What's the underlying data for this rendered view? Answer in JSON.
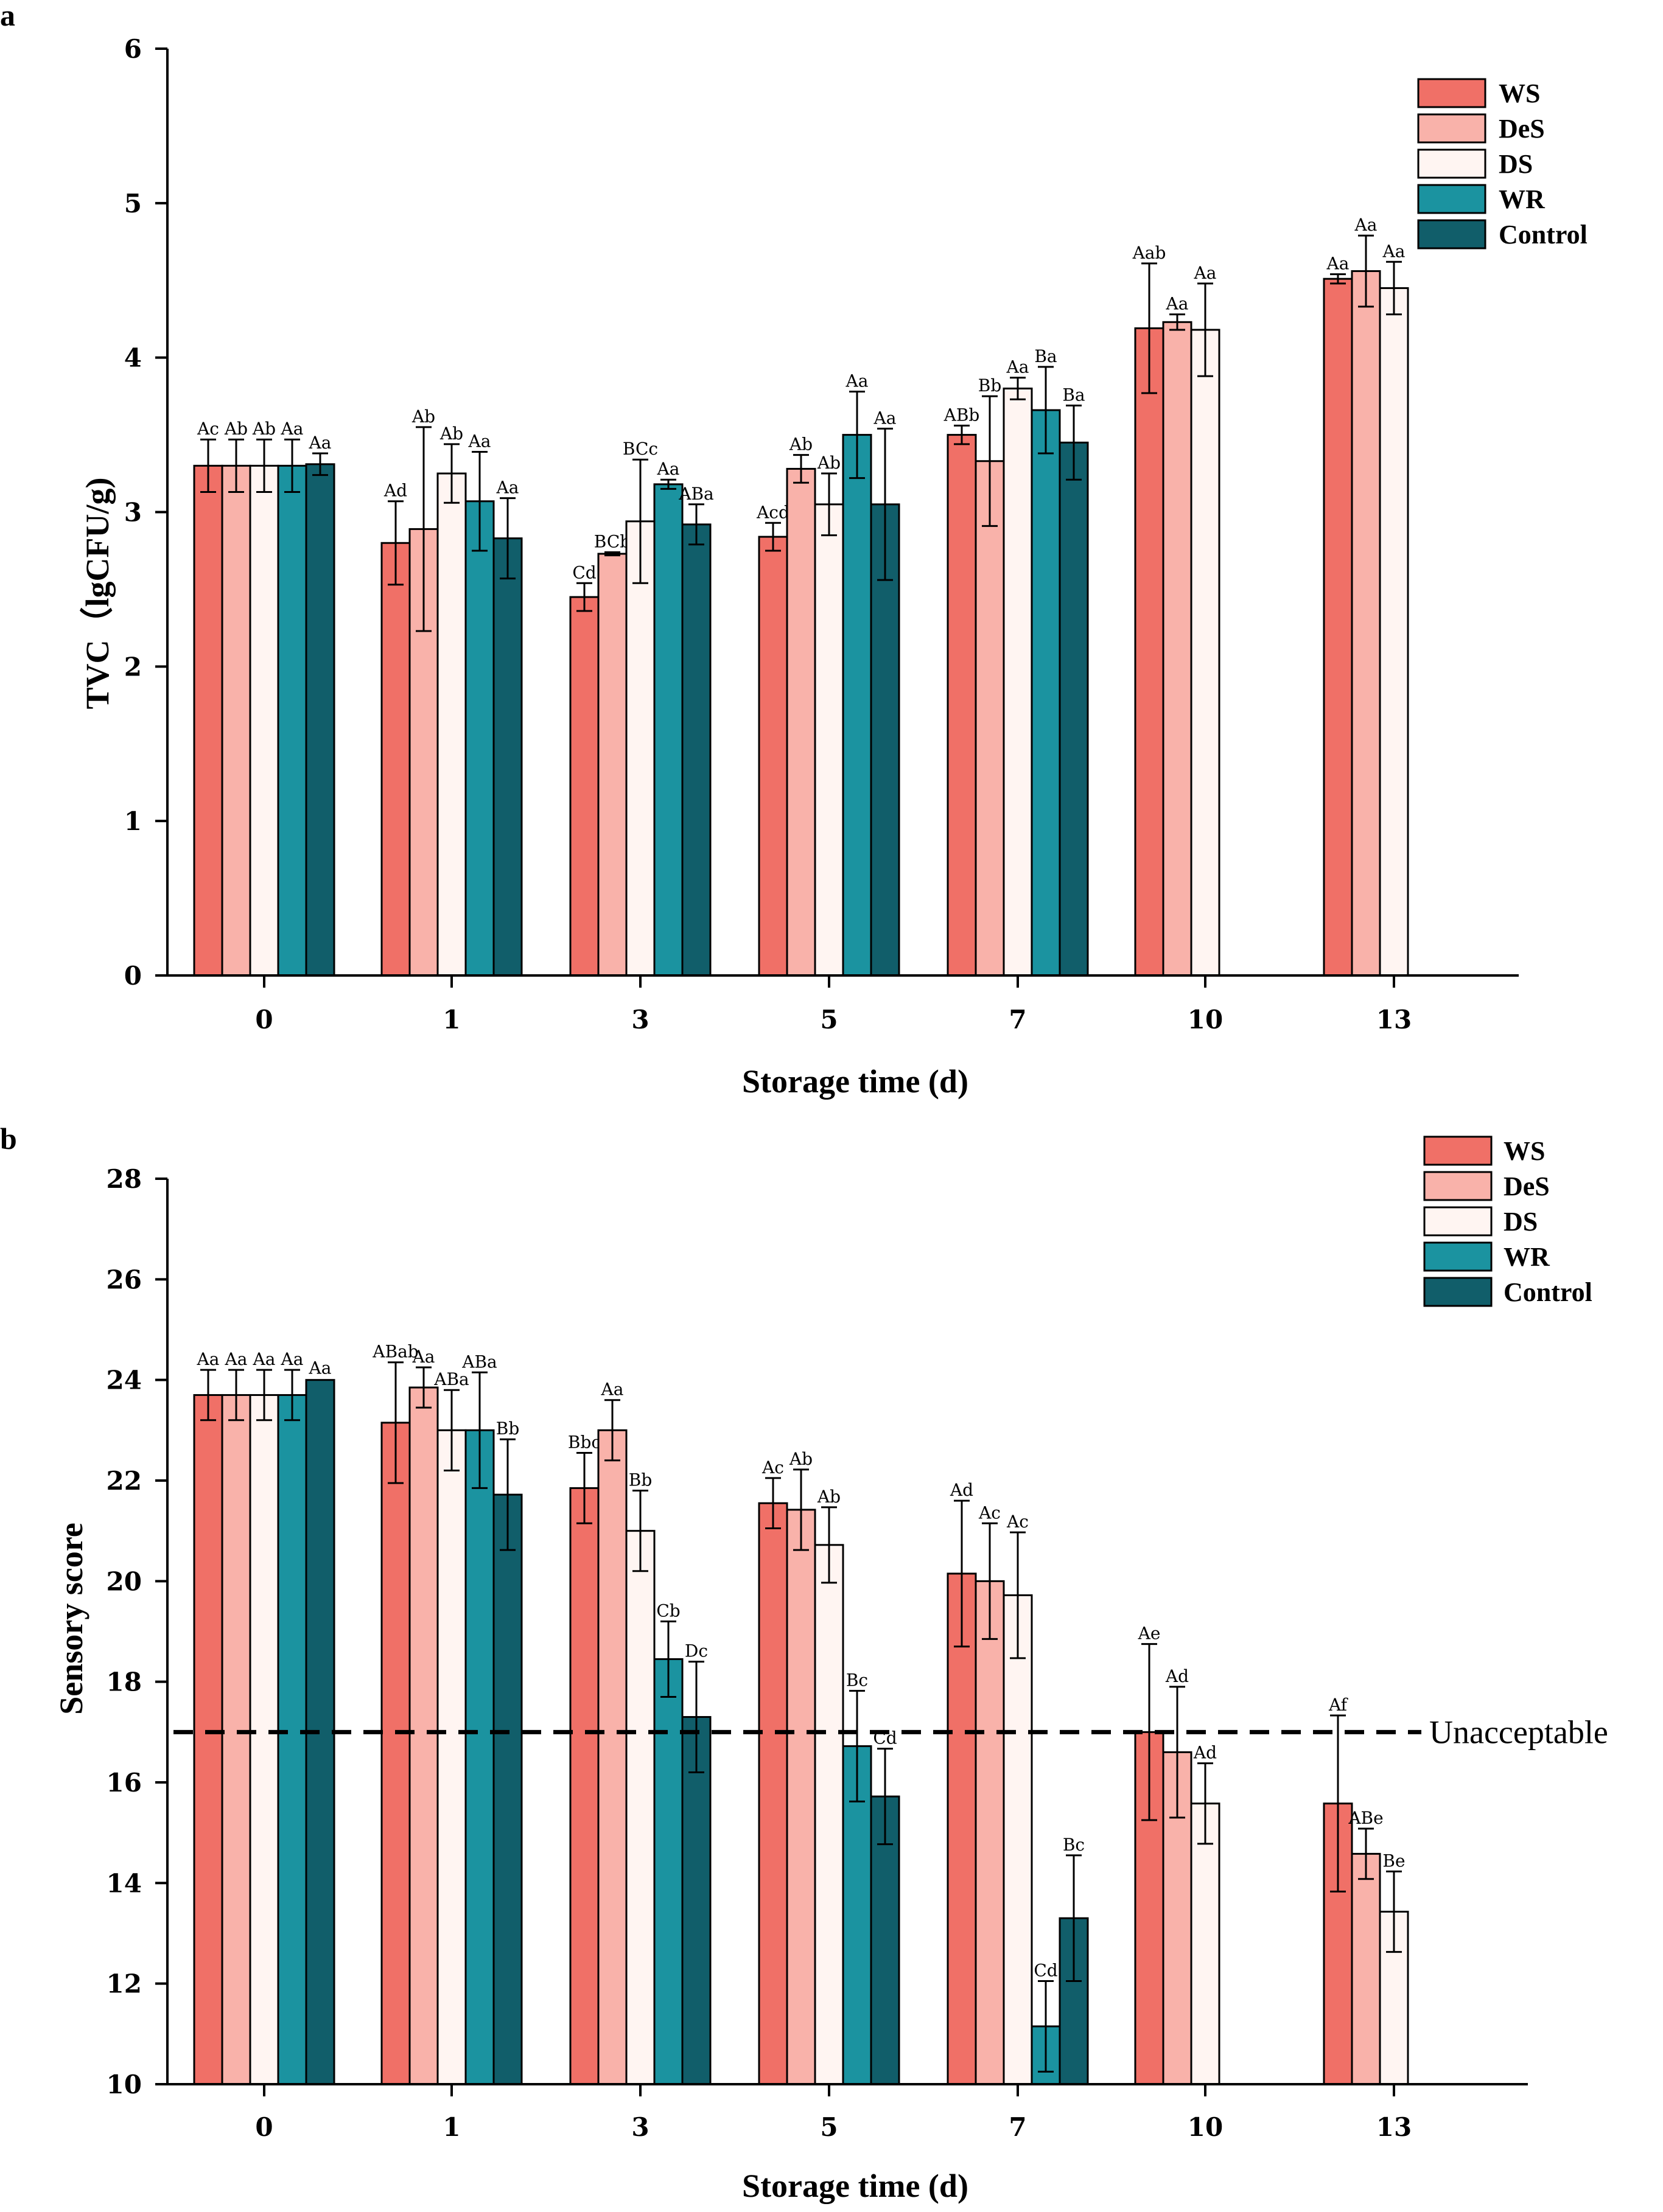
{
  "chart_data": [
    {
      "panel": "a",
      "type": "bar",
      "xlabel": "Storage time (d)",
      "ylabel": "TVC（lgCFU/g)",
      "ylim": [
        0,
        6
      ],
      "yticks": [
        "0",
        "1",
        "2",
        "3",
        "4",
        "5",
        "6"
      ],
      "categories": [
        "0",
        "1",
        "3",
        "5",
        "7",
        "10",
        "13"
      ],
      "legend": {
        "placement": "top-right"
      },
      "series": [
        {
          "name": "WS",
          "color": "#F07067",
          "values": [
            3.3,
            2.8,
            2.45,
            2.84,
            3.5,
            4.19,
            4.51
          ],
          "errors": [
            0.17,
            0.27,
            0.09,
            0.09,
            0.06,
            0.42,
            0.03
          ],
          "labels": [
            "Ac",
            "Ad",
            "Cd",
            "Acd",
            "ABb",
            "Aab",
            "Aa"
          ]
        },
        {
          "name": "DeS",
          "color": "#F9B2AA",
          "values": [
            3.3,
            2.89,
            2.73,
            3.28,
            3.33,
            4.23,
            4.56
          ],
          "errors": [
            0.17,
            0.66,
            0.01,
            0.09,
            0.42,
            0.05,
            0.23
          ],
          "labels": [
            "Ab",
            "Ab",
            "BCb",
            "Ab",
            "Bb",
            "Aa",
            "Aa"
          ]
        },
        {
          "name": "DS",
          "color": "#FFF5F2",
          "values": [
            3.3,
            3.25,
            2.94,
            3.05,
            3.8,
            4.18,
            4.45
          ],
          "errors": [
            0.17,
            0.19,
            0.4,
            0.2,
            0.07,
            0.3,
            0.17
          ],
          "labels": [
            "Ab",
            "Ab",
            "BCc",
            "Ab",
            "Aa",
            "Aa",
            "Aa"
          ]
        },
        {
          "name": "WR",
          "color": "#1B93A0",
          "values": [
            3.3,
            3.07,
            3.18,
            3.5,
            3.66,
            null,
            null
          ],
          "errors": [
            0.17,
            0.32,
            0.03,
            0.28,
            0.28,
            null,
            null
          ],
          "labels": [
            "Aa",
            "Aa",
            "Aa",
            "Aa",
            "Ba",
            "",
            ""
          ]
        },
        {
          "name": "Control",
          "color": "#115E6A",
          "values": [
            3.31,
            2.83,
            2.92,
            3.05,
            3.45,
            null,
            null
          ],
          "errors": [
            0.07,
            0.26,
            0.13,
            0.49,
            0.24,
            null,
            null
          ],
          "labels": [
            "Aa",
            "Aa",
            "ABa",
            "Aa",
            "Ba",
            "",
            ""
          ]
        }
      ]
    },
    {
      "panel": "b",
      "type": "bar",
      "xlabel": "Storage time (d)",
      "ylabel": "Sensory score",
      "ylim": [
        10,
        28
      ],
      "yticks": [
        "10",
        "12",
        "14",
        "16",
        "18",
        "20",
        "22",
        "24",
        "26",
        "28"
      ],
      "categories": [
        "0",
        "1",
        "3",
        "5",
        "7",
        "10",
        "13"
      ],
      "legend": {
        "placement": "top-right"
      },
      "threshold": {
        "value": 17,
        "label": "Unacceptable"
      },
      "series": [
        {
          "name": "WS",
          "color": "#F07067",
          "values": [
            23.7,
            23.15,
            21.85,
            21.55,
            20.15,
            17.0,
            15.58
          ],
          "errors": [
            0.5,
            1.2,
            0.7,
            0.5,
            1.45,
            1.75,
            1.75
          ],
          "labels": [
            "Aa",
            "ABab",
            "Bbc",
            "Ac",
            "Ad",
            "Ae",
            "Af"
          ]
        },
        {
          "name": "DeS",
          "color": "#F9B2AA",
          "values": [
            23.7,
            23.85,
            23.0,
            21.42,
            20.0,
            16.6,
            14.58
          ],
          "errors": [
            0.5,
            0.4,
            0.6,
            0.8,
            1.15,
            1.3,
            0.5
          ],
          "labels": [
            "Aa",
            "Aa",
            "Aa",
            "Ab",
            "Ac",
            "Ad",
            "ABe"
          ]
        },
        {
          "name": "DS",
          "color": "#FFF5F2",
          "values": [
            23.7,
            23.0,
            21.0,
            20.72,
            19.72,
            15.58,
            13.43
          ],
          "errors": [
            0.5,
            0.8,
            0.8,
            0.75,
            1.25,
            0.8,
            0.8
          ],
          "labels": [
            "Aa",
            "ABa",
            "Bb",
            "Ab",
            "Ac",
            "Ad",
            "Be"
          ]
        },
        {
          "name": "WR",
          "color": "#1B93A0",
          "values": [
            23.7,
            23.0,
            18.45,
            16.72,
            11.15,
            null,
            null
          ],
          "errors": [
            0.5,
            1.15,
            0.75,
            1.1,
            0.9,
            null,
            null
          ],
          "labels": [
            "Aa",
            "ABa",
            "Cb",
            "Bc",
            "Cd",
            "",
            ""
          ]
        },
        {
          "name": "Control",
          "color": "#115E6A",
          "values": [
            24.0,
            21.72,
            17.3,
            15.72,
            13.3,
            null,
            null
          ],
          "errors": [
            0.0,
            1.1,
            1.1,
            0.95,
            1.25,
            null,
            null
          ],
          "labels": [
            "Aa",
            "Bb",
            "Dc",
            "Cd",
            "Bc",
            "",
            ""
          ]
        }
      ]
    }
  ]
}
